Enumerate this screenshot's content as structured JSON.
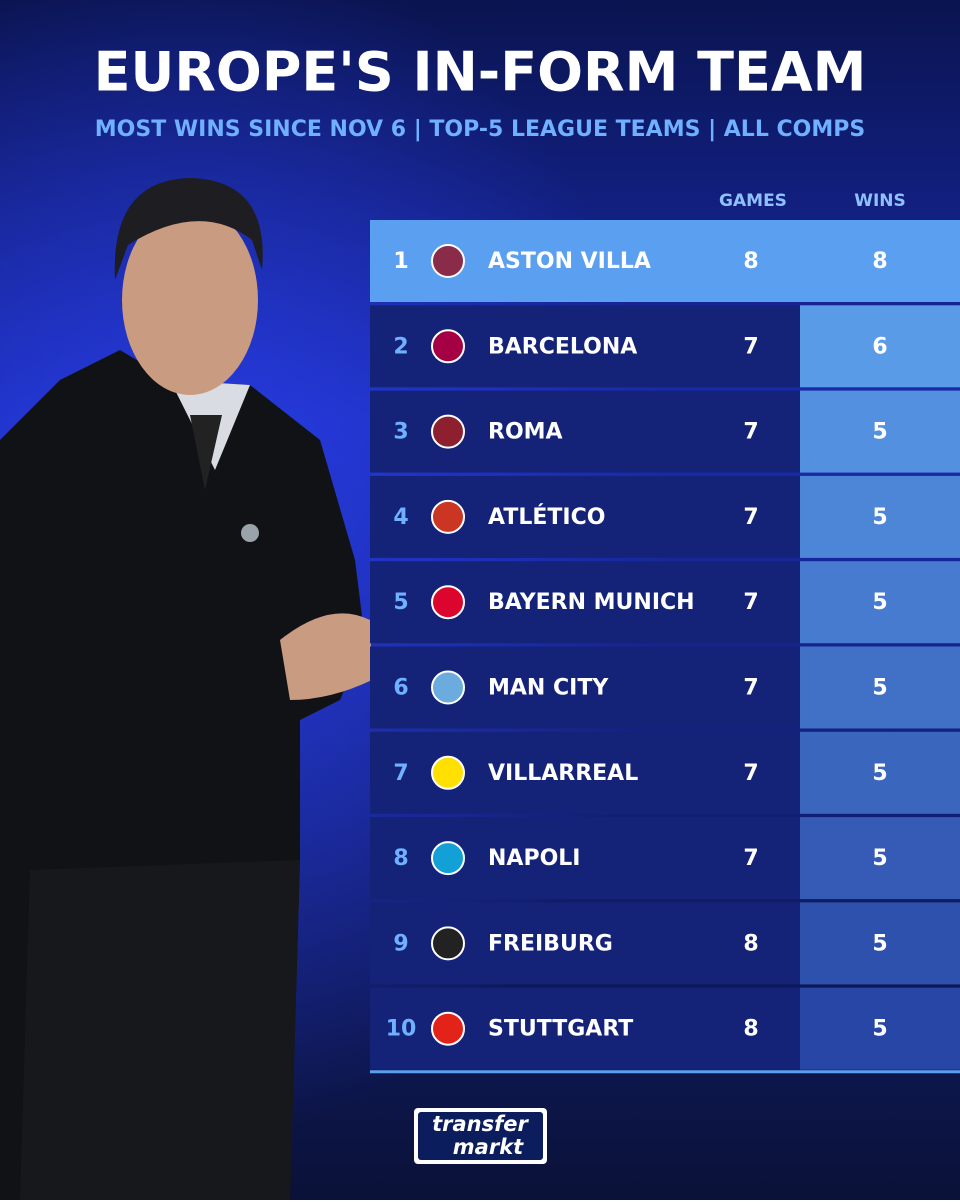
{
  "header": {
    "title": "EUROPE'S IN-FORM TEAM",
    "subtitle": "MOST WINS SINCE NOV 6 | TOP-5 LEAGUE TEAMS | ALL COMPS"
  },
  "table": {
    "columns": [
      "GAMES",
      "WINS"
    ],
    "rows": [
      {
        "rank": "1",
        "team": "ASTON VILLA",
        "games": "8",
        "wins": "8"
      },
      {
        "rank": "2",
        "team": "BARCELONA",
        "games": "7",
        "wins": "6"
      },
      {
        "rank": "3",
        "team": "ROMA",
        "games": "7",
        "wins": "5"
      },
      {
        "rank": "4",
        "team": "ATLÉTICO",
        "games": "7",
        "wins": "5"
      },
      {
        "rank": "5",
        "team": "BAYERN MUNICH",
        "games": "7",
        "wins": "5"
      },
      {
        "rank": "6",
        "team": "MAN CITY",
        "games": "7",
        "wins": "5"
      },
      {
        "rank": "7",
        "team": "VILLARREAL",
        "games": "7",
        "wins": "5"
      },
      {
        "rank": "8",
        "team": "NAPOLI",
        "games": "7",
        "wins": "5"
      },
      {
        "rank": "9",
        "team": "FREIBURG",
        "games": "8",
        "wins": "5"
      },
      {
        "rank": "10",
        "team": "STUTTGART",
        "games": "8",
        "wins": "5"
      }
    ]
  },
  "footer": {
    "logo_top": "transfer",
    "logo_bottom": "markt"
  }
}
